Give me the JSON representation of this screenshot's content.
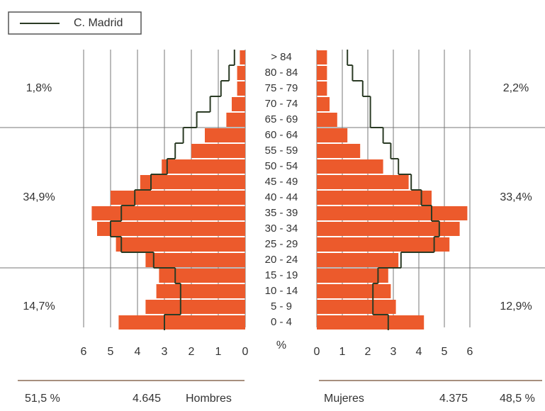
{
  "chart_data": {
    "type": "pyramid",
    "categories": [
      "> 84",
      "80 - 84",
      "75 - 79",
      "70 - 74",
      "65 - 69",
      "60 - 64",
      "55 - 59",
      "50 - 54",
      "45 - 49",
      "40 - 44",
      "35 - 39",
      "30 - 34",
      "25 - 29",
      "20 - 24",
      "15 - 19",
      "10 - 14",
      "5 - 9",
      "0 - 4"
    ],
    "series": [
      {
        "name": "Hombres",
        "color": "#ec5a2c",
        "values": [
          0.2,
          0.3,
          0.3,
          0.5,
          0.7,
          1.5,
          2.0,
          3.1,
          3.9,
          5.0,
          5.7,
          5.5,
          4.8,
          3.7,
          3.2,
          3.3,
          3.7,
          4.7
        ]
      },
      {
        "name": "Mujeres",
        "color": "#ec5a2c",
        "values": [
          0.4,
          0.4,
          0.4,
          0.5,
          0.8,
          1.2,
          1.7,
          2.6,
          3.6,
          4.5,
          5.9,
          5.6,
          5.2,
          3.2,
          2.8,
          2.9,
          3.1,
          4.2
        ]
      }
    ],
    "reference": {
      "name": "C. Madrid",
      "color": "#2b3b25",
      "left": [
        0.4,
        0.6,
        0.9,
        1.3,
        1.8,
        2.3,
        2.6,
        2.9,
        3.5,
        4.1,
        4.6,
        5.0,
        4.6,
        3.4,
        2.6,
        2.4,
        2.4,
        3.0
      ],
      "right": [
        1.2,
        1.4,
        1.8,
        2.1,
        2.1,
        2.6,
        2.9,
        3.2,
        3.7,
        4.1,
        4.5,
        4.8,
        4.6,
        3.3,
        2.4,
        2.2,
        2.2,
        2.8
      ]
    },
    "xlabel": "%",
    "xlim": [
      0,
      6
    ],
    "xticks": [
      0,
      1,
      2,
      3,
      4,
      5,
      6
    ],
    "grid": true,
    "age_groups": [
      {
        "left": {
          "value": 1.8,
          "label": "1,8%"
        },
        "right": {
          "value": 2.2,
          "label": "2,2%"
        }
      },
      {
        "left": {
          "value": 34.9,
          "label": "34,9%"
        },
        "right": {
          "value": 33.4,
          "label": "33,4%"
        }
      },
      {
        "left": {
          "value": 14.7,
          "label": "14,7%"
        },
        "right": {
          "value": 12.9,
          "label": "12,9%"
        }
      }
    ],
    "totals": [
      {
        "percent": {
          "value": 51.5,
          "label": "51,5 %"
        },
        "count": {
          "value": 4645,
          "label": "4.645"
        }
      },
      {
        "percent": {
          "value": 48.5,
          "label": "48,5 %"
        },
        "count": {
          "value": 4375,
          "label": "4.375"
        }
      }
    ]
  }
}
